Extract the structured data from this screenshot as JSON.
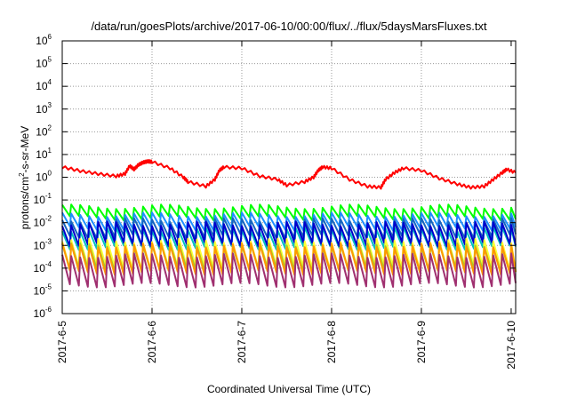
{
  "chart_data": {
    "type": "line",
    "title": "/data/run/goesPlots/archive/2017-06-10/00:00/flux/../flux/5daysMarsFluxes.txt",
    "xlabel": "Coordinated Universal Time (UTC)",
    "ylabel_parts": [
      "protons/cm",
      "2",
      "-s-sr-MeV"
    ],
    "y_scale": "log",
    "ylim": [
      1e-06,
      1000000.0
    ],
    "y_ticks": [
      {
        "base": "10",
        "exp": "-6"
      },
      {
        "base": "10",
        "exp": "-5"
      },
      {
        "base": "10",
        "exp": "-4"
      },
      {
        "base": "10",
        "exp": "-3"
      },
      {
        "base": "10",
        "exp": "-2"
      },
      {
        "base": "10",
        "exp": "-1"
      },
      {
        "base": "10",
        "exp": "0"
      },
      {
        "base": "10",
        "exp": "1"
      },
      {
        "base": "10",
        "exp": "2"
      },
      {
        "base": "10",
        "exp": "3"
      },
      {
        "base": "10",
        "exp": "4"
      },
      {
        "base": "10",
        "exp": "5"
      },
      {
        "base": "10",
        "exp": "6"
      }
    ],
    "x_ticks": [
      "2017-6-5",
      "2017-6-6",
      "2017-6-7",
      "2017-6-8",
      "2017-6-9",
      "2017-6-10"
    ],
    "xlim_days": [
      0,
      5.05
    ],
    "grid": true,
    "series": [
      {
        "color": "#ff0000",
        "width": 2,
        "upper": true,
        "amp": 0.8,
        "points": [
          [
            0.0,
            0.45
          ],
          [
            0.2,
            0.28
          ],
          [
            0.4,
            0.15
          ],
          [
            0.6,
            0.05
          ],
          [
            0.7,
            0.15
          ],
          [
            0.75,
            0.5
          ],
          [
            0.8,
            0.35
          ],
          [
            0.85,
            0.55
          ],
          [
            0.9,
            0.65
          ],
          [
            0.95,
            0.7
          ],
          [
            1.0,
            0.68
          ],
          [
            1.2,
            0.4
          ],
          [
            1.35,
            0.0
          ],
          [
            1.4,
            -0.2
          ],
          [
            1.6,
            -0.4
          ],
          [
            1.7,
            -0.1
          ],
          [
            1.75,
            0.3
          ],
          [
            1.8,
            0.45
          ],
          [
            2.0,
            0.4
          ],
          [
            2.2,
            0.05
          ],
          [
            2.4,
            -0.1
          ],
          [
            2.5,
            -0.35
          ],
          [
            2.7,
            -0.2
          ],
          [
            2.8,
            0.0
          ],
          [
            2.85,
            0.3
          ],
          [
            2.9,
            0.45
          ],
          [
            3.0,
            0.4
          ],
          [
            3.2,
            -0.1
          ],
          [
            3.4,
            -0.4
          ],
          [
            3.55,
            -0.45
          ],
          [
            3.6,
            -0.1
          ],
          [
            3.7,
            0.2
          ],
          [
            3.8,
            0.4
          ],
          [
            4.0,
            0.3
          ],
          [
            4.2,
            -0.05
          ],
          [
            4.4,
            -0.3
          ],
          [
            4.55,
            -0.45
          ],
          [
            4.7,
            -0.4
          ],
          [
            4.8,
            -0.1
          ],
          [
            4.9,
            0.2
          ],
          [
            4.95,
            0.35
          ],
          [
            5.05,
            0.2
          ]
        ]
      },
      {
        "color": "#00ff00",
        "width": 2,
        "base": -1.55,
        "amp": 0.5,
        "period": 0.1
      },
      {
        "color": "#1e90ff",
        "width": 2,
        "base": -1.95,
        "amp": 0.6,
        "period": 0.1
      },
      {
        "color": "#1565c0",
        "width": 2,
        "base": -2.25,
        "amp": 0.7,
        "period": 0.1
      },
      {
        "color": "#00bfbf",
        "width": 2,
        "base": -2.7,
        "amp": 0.8,
        "period": 0.1
      },
      {
        "color": "#0000cd",
        "width": 2,
        "base": -2.5,
        "amp": 0.9,
        "period": 0.1
      },
      {
        "color": "#ffff33",
        "width": 2,
        "base": -3.4,
        "amp": 1.2,
        "period": 0.1
      },
      {
        "color": "#9acd32",
        "width": 2,
        "base": -3.55,
        "amp": 1.1,
        "period": 0.1
      },
      {
        "color": "#ff9900",
        "width": 2,
        "base": -3.6,
        "amp": 1.2,
        "period": 0.1
      },
      {
        "color": "#a03070",
        "width": 2,
        "base": -4.1,
        "amp": 1.3,
        "period": 0.1
      }
    ]
  }
}
